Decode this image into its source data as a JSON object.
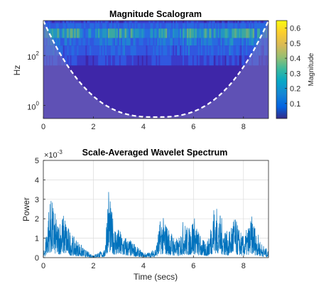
{
  "colors": {
    "power_line": "#0072bd",
    "scalogram_bg": "#3e26a8",
    "coi_shade": "#7a74c0",
    "axis": "#262626",
    "grid": "#dcdcdc"
  },
  "chart_data": [
    {
      "type": "heatmap",
      "title": "Magnitude Scalogram",
      "ylabel": "Hz",
      "xlim": [
        0,
        9
      ],
      "y_scale": "log",
      "ylim": [
        0.3,
        2500
      ],
      "xticks": [
        "0",
        "2",
        "4",
        "6",
        "8"
      ],
      "yticks": [
        {
          "base": "10",
          "exp": "0",
          "value": 1
        },
        {
          "base": "10",
          "exp": "2",
          "value": 100
        }
      ],
      "colorbar": {
        "label": "Magnitude",
        "colormap": "parula",
        "range": [
          0,
          0.65
        ],
        "ticks": [
          "0.1",
          "0.2",
          "0.3",
          "0.4",
          "0.5",
          "0.6"
        ],
        "tick_values": [
          0.1,
          0.2,
          0.3,
          0.4,
          0.5,
          0.6
        ]
      },
      "cone_of_influence": "dashed white boundary with shaded region outside",
      "high_magnitude_band_hz": [
        500,
        1200
      ],
      "bursts_time_secs": [
        0.4,
        1.1,
        2.6,
        3.3,
        4.8,
        5.8,
        6.6,
        7.5,
        8.3
      ],
      "grid": false
    },
    {
      "type": "line",
      "title": "Scale-Averaged Wavelet Spectrum",
      "xlabel": "Time (secs)",
      "ylabel": "Power",
      "y_exponent_label": {
        "base": "×10",
        "exp": "-3"
      },
      "xlim": [
        0,
        9
      ],
      "ylim": [
        0,
        5
      ],
      "xticks": [
        "0",
        "2",
        "4",
        "6",
        "8"
      ],
      "yticks": [
        "0",
        "1",
        "2",
        "3",
        "4",
        "5"
      ],
      "grid": true,
      "series": [
        {
          "color": "#0072bd",
          "envelope_x": [
            0,
            0.1,
            0.25,
            0.4,
            0.55,
            0.7,
            0.85,
            1.0,
            1.2,
            1.4,
            1.6,
            1.8,
            2.0,
            2.2,
            2.45,
            2.6,
            2.7,
            2.85,
            3.0,
            3.2,
            3.4,
            3.6,
            3.8,
            4.0,
            4.3,
            4.5,
            4.7,
            4.85,
            5.0,
            5.2,
            5.4,
            5.6,
            5.8,
            6.0,
            6.2,
            6.4,
            6.6,
            6.8,
            7.0,
            7.2,
            7.4,
            7.6,
            7.8,
            8.0,
            8.2,
            8.35,
            8.5,
            8.7,
            8.9,
            9.0
          ],
          "envelope_y": [
            0.1,
            1.2,
            3.2,
            2.8,
            1.8,
            2.2,
            2.3,
            1.6,
            1.1,
            0.9,
            0.5,
            0.3,
            0.15,
            0.3,
            0.4,
            4.1,
            2.6,
            1.8,
            1.5,
            1.2,
            1.0,
            0.8,
            0.5,
            0.25,
            0.3,
            0.6,
            2.2,
            2.0,
            1.6,
            1.2,
            0.9,
            2.0,
            1.5,
            2.3,
            1.4,
            0.9,
            1.0,
            2.8,
            2.5,
            1.8,
            1.2,
            2.3,
            1.6,
            1.1,
            1.7,
            2.2,
            1.5,
            0.8,
            0.5,
            0.3
          ]
        }
      ]
    }
  ]
}
